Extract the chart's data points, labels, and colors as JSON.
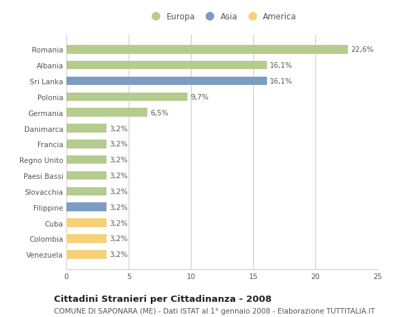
{
  "countries": [
    "Romania",
    "Albania",
    "Sri Lanka",
    "Polonia",
    "Germania",
    "Danimarca",
    "Francia",
    "Regno Unito",
    "Paesi Bassi",
    "Slovacchia",
    "Filippine",
    "Cuba",
    "Colombia",
    "Venezuela"
  ],
  "values": [
    22.6,
    16.1,
    16.1,
    9.7,
    6.5,
    3.2,
    3.2,
    3.2,
    3.2,
    3.2,
    3.2,
    3.2,
    3.2,
    3.2
  ],
  "labels": [
    "22,6%",
    "16,1%",
    "16,1%",
    "9,7%",
    "6,5%",
    "3,2%",
    "3,2%",
    "3,2%",
    "3,2%",
    "3,2%",
    "3,2%",
    "3,2%",
    "3,2%",
    "3,2%"
  ],
  "continents": [
    "Europa",
    "Europa",
    "Asia",
    "Europa",
    "Europa",
    "Europa",
    "Europa",
    "Europa",
    "Europa",
    "Europa",
    "Asia",
    "America",
    "America",
    "America"
  ],
  "colors": {
    "Europa": "#b5cc8e",
    "Asia": "#7b9dc2",
    "America": "#f5d27a"
  },
  "xlim": [
    0,
    25
  ],
  "xticks": [
    0,
    5,
    10,
    15,
    20,
    25
  ],
  "title": "Cittadini Stranieri per Cittadinanza - 2008",
  "subtitle": "COMUNE DI SAPONARA (ME) - Dati ISTAT al 1° gennaio 2008 - Elaborazione TUTTITALIA.IT",
  "background_color": "#ffffff",
  "grid_color": "#cccccc",
  "bar_height": 0.55,
  "label_fontsize": 7.5,
  "tick_fontsize": 7.5,
  "title_fontsize": 9.5,
  "subtitle_fontsize": 7.5
}
